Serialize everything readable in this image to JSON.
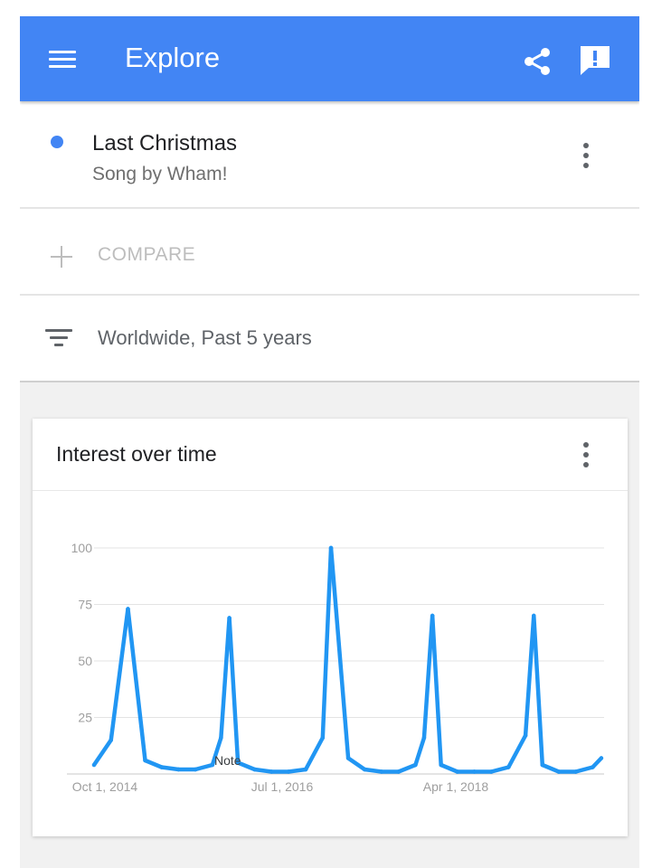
{
  "app_bar": {
    "title": "Explore",
    "color": "#4285f4",
    "left_icon": "menu-icon",
    "right_icons": [
      "share-icon",
      "feedback-icon"
    ]
  },
  "search_term": {
    "title": "Last Christmas",
    "subtitle": "Song by Wham!",
    "color": "#4285f4"
  },
  "compare": {
    "label": "COMPARE"
  },
  "filter": {
    "label": "Worldwide, Past 5 years"
  },
  "card": {
    "title": "Interest over time"
  },
  "chart_data": {
    "type": "line",
    "title": "Interest over time",
    "x_tick_labels": [
      "Oct 1, 2014",
      "Jul 1, 2016",
      "Apr 1, 2018"
    ],
    "y_ticks": [
      25,
      50,
      75,
      100
    ],
    "ylim": [
      0,
      100
    ],
    "grid": true,
    "annotation": "Note",
    "series": [
      {
        "color": "#2196f3",
        "points": [
          {
            "x": "2014-08",
            "y": 4
          },
          {
            "x": "2014-10",
            "y": 15
          },
          {
            "x": "2014-12",
            "y": 73
          },
          {
            "x": "2015-02",
            "y": 6
          },
          {
            "x": "2015-04",
            "y": 3
          },
          {
            "x": "2015-06",
            "y": 2
          },
          {
            "x": "2015-08",
            "y": 2
          },
          {
            "x": "2015-10",
            "y": 4
          },
          {
            "x": "2015-11",
            "y": 16
          },
          {
            "x": "2015-12",
            "y": 69
          },
          {
            "x": "2016-01",
            "y": 5
          },
          {
            "x": "2016-03",
            "y": 2
          },
          {
            "x": "2016-05",
            "y": 1
          },
          {
            "x": "2016-07",
            "y": 1
          },
          {
            "x": "2016-09",
            "y": 2
          },
          {
            "x": "2016-11",
            "y": 16
          },
          {
            "x": "2016-12",
            "y": 100
          },
          {
            "x": "2017-02",
            "y": 7
          },
          {
            "x": "2017-04",
            "y": 2
          },
          {
            "x": "2017-06",
            "y": 1
          },
          {
            "x": "2017-08",
            "y": 1
          },
          {
            "x": "2017-10",
            "y": 4
          },
          {
            "x": "2017-11",
            "y": 16
          },
          {
            "x": "2017-12",
            "y": 70
          },
          {
            "x": "2018-01",
            "y": 4
          },
          {
            "x": "2018-03",
            "y": 1
          },
          {
            "x": "2018-05",
            "y": 1
          },
          {
            "x": "2018-07",
            "y": 1
          },
          {
            "x": "2018-09",
            "y": 3
          },
          {
            "x": "2018-11",
            "y": 17
          },
          {
            "x": "2018-12",
            "y": 70
          },
          {
            "x": "2019-01",
            "y": 4
          },
          {
            "x": "2019-03",
            "y": 1
          },
          {
            "x": "2019-05",
            "y": 1
          },
          {
            "x": "2019-07",
            "y": 3
          },
          {
            "x": "2019-08",
            "y": 7
          }
        ]
      }
    ]
  }
}
